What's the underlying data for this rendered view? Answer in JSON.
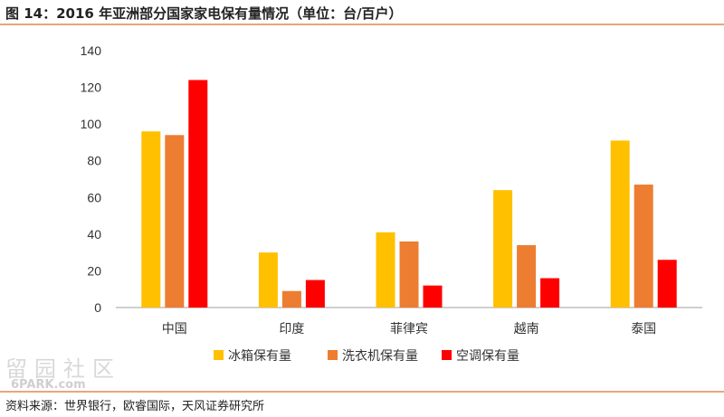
{
  "header": {
    "title": "图 14：2016 年亚洲部分国家家电保有量情况（单位：台/百户）"
  },
  "chart_data": {
    "type": "bar",
    "categories": [
      "中国",
      "印度",
      "菲律宾",
      "越南",
      "泰国"
    ],
    "series": [
      {
        "name": "冰箱保有量",
        "values": [
          96,
          30,
          41,
          64,
          91
        ],
        "color": "#ffc000"
      },
      {
        "name": "洗衣机保有量",
        "values": [
          94,
          9,
          36,
          34,
          67
        ],
        "color": "#ed7d31"
      },
      {
        "name": "空调保有量",
        "values": [
          124,
          15,
          12,
          16,
          26
        ],
        "color": "#ff0000"
      }
    ],
    "ylim": [
      0,
      140
    ],
    "yticks": [
      0,
      20,
      40,
      60,
      80,
      100,
      120,
      140
    ],
    "grid": false,
    "legend_position": "bottom"
  },
  "watermark": {
    "text": "留园社区",
    "url": "6PARK.com"
  },
  "footer": {
    "source": "资料来源：世界银行，欧睿国际，天风证券研究所"
  }
}
